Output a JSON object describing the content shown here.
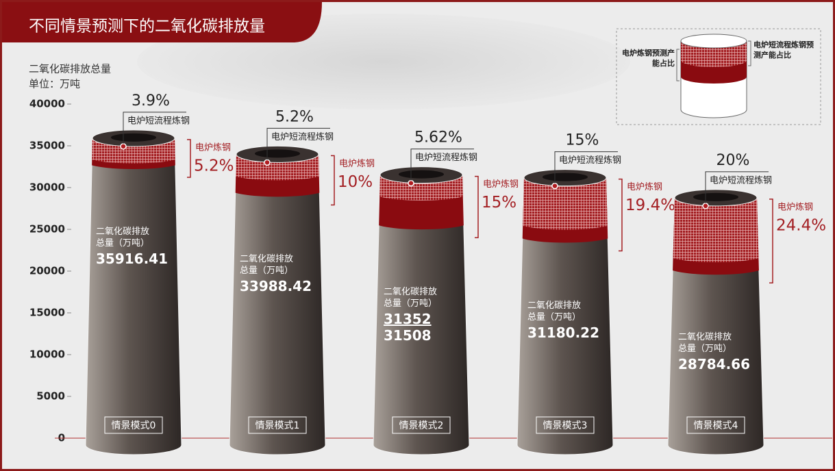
{
  "chart_data": {
    "type": "chimney",
    "title": "不同情景预测下的二氧化碳排放量",
    "y_label": "二氧化碳排放总量",
    "y_unit": "单位：万吨",
    "column_label": "二氧化碳排放总量（万吨）",
    "categories": [
      "情景模式0",
      "情景模式1",
      "情景模式2",
      "情景模式3",
      "情景模式4"
    ],
    "values": [
      35916.41,
      33988.42,
      31508,
      31180.22,
      28784.66
    ],
    "range_low": [
      null,
      null,
      31352,
      null,
      null
    ],
    "ylim": [
      0,
      40000
    ],
    "yticks": [
      0,
      5000,
      10000,
      15000,
      20000,
      25000,
      30000,
      35000,
      40000
    ],
    "series": [
      {
        "name": "电炉短流程炼钢",
        "legend": "电炉短流程炼钢预测产能占比",
        "color": "#a31e22",
        "values": [
          3.9,
          5.2,
          5.62,
          15,
          20
        ],
        "value_labels": [
          "3.9%",
          "5.2%",
          "5.62%",
          "15%",
          "20%"
        ]
      },
      {
        "name": "电炉炼钢",
        "legend": "电炉炼钢预测产能占比",
        "color": "#8a0b10",
        "values": [
          5.2,
          10,
          15,
          19.4,
          24.4
        ],
        "value_labels": [
          "5.2%",
          "10%",
          "15%",
          "19.4%",
          "24.4%"
        ]
      }
    ]
  }
}
